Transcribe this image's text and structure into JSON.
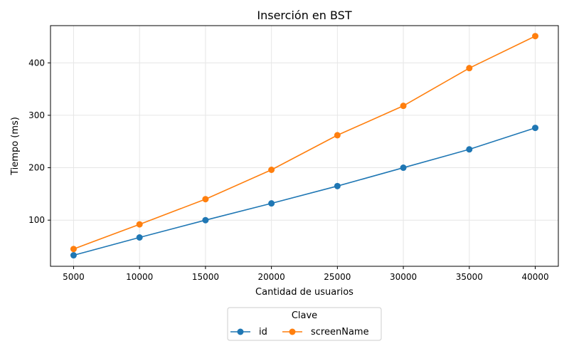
{
  "chart_data": {
    "type": "line",
    "title": "Inserción en BST",
    "xlabel": "Cantidad de usuarios",
    "ylabel": "Tiempo (ms)",
    "x": [
      5000,
      10000,
      15000,
      20000,
      25000,
      30000,
      35000,
      40000
    ],
    "xlim": [
      3250,
      41750
    ],
    "ylim": [
      12,
      471
    ],
    "xticks": [
      5000,
      10000,
      15000,
      20000,
      25000,
      30000,
      35000,
      40000
    ],
    "yticks": [
      100,
      200,
      300,
      400
    ],
    "grid": true,
    "legend": {
      "title": "Clave",
      "placement": "below-center"
    },
    "series": [
      {
        "name": "id",
        "color": "#1f77b4",
        "values": [
          33,
          67,
          100,
          132,
          165,
          200,
          235,
          276
        ]
      },
      {
        "name": "screenName",
        "color": "#ff7f0e",
        "values": [
          45,
          92,
          140,
          196,
          262,
          318,
          390,
          451
        ]
      }
    ]
  }
}
